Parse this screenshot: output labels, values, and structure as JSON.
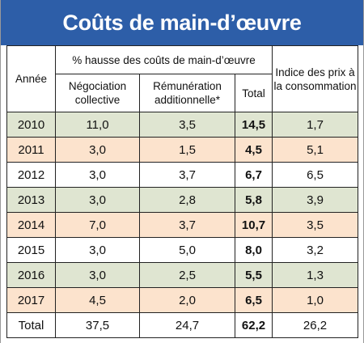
{
  "title": "Coûts de main-d’œuvre",
  "table": {
    "header": {
      "year": "Année",
      "group": "% hausse des coûts de main-d’œuvre",
      "negotiation": "Négociation collective",
      "remuneration": "Rémunération additionnelle*",
      "total": "Total",
      "index": "Indice des prix à la consommation"
    },
    "rows": [
      [
        "2010",
        "11,0",
        "3,5",
        "14,5",
        "1,7"
      ],
      [
        "2011",
        "3,0",
        "1,5",
        "4,5",
        "5,1"
      ],
      [
        "2012",
        "3,0",
        "3,7",
        "6,7",
        "6,5"
      ],
      [
        "2013",
        "3,0",
        "2,8",
        "5,8",
        "3,9"
      ],
      [
        "2014",
        "7,0",
        "3,7",
        "10,7",
        "3,5"
      ],
      [
        "2015",
        "3,0",
        "5,0",
        "8,0",
        "3,2"
      ],
      [
        "2016",
        "3,0",
        "2,5",
        "5,5",
        "1,3"
      ],
      [
        "2017",
        "4,5",
        "2,0",
        "6,5",
        "1,0"
      ],
      [
        "Total",
        "37,5",
        "24,7",
        "62,2",
        "26,2"
      ]
    ]
  }
}
